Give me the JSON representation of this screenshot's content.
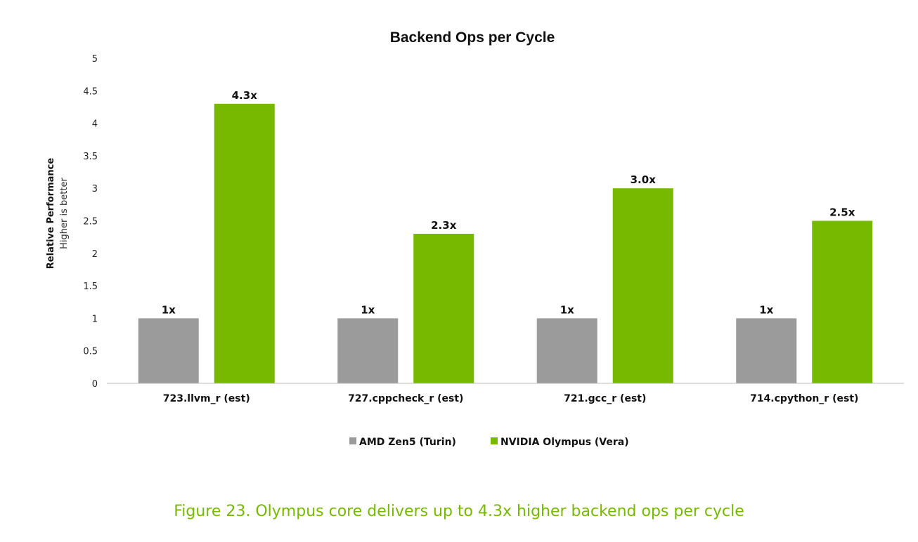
{
  "caption": "Figure 23. Olympus core delivers up to 4.3x higher backend ops per cycle",
  "colors": {
    "amd": "#9b9b9b",
    "nvidia": "#76b900",
    "caption": "#76b900"
  },
  "chart_data": {
    "type": "bar",
    "title": "Backend Ops per Cycle",
    "ylabel": "Relative Performance",
    "ylabel_sub": "Higher is better",
    "xlabel": "",
    "ylim": [
      0,
      5
    ],
    "yticks": [
      "0",
      "0.5",
      "1",
      "1.5",
      "2",
      "2.5",
      "3",
      "3.5",
      "4",
      "4.5",
      "5"
    ],
    "categories": [
      "723.llvm_r (est)",
      "727.cppcheck_r (est)",
      "721.gcc_r (est)",
      "714.cpython_r (est)"
    ],
    "series": [
      {
        "name": "AMD Zen5 (Turin)",
        "color": "#9b9b9b",
        "values": [
          1,
          1,
          1,
          1
        ],
        "labels": [
          "1x",
          "1x",
          "1x",
          "1x"
        ]
      },
      {
        "name": "NVIDIA Olympus (Vera)",
        "color": "#76b900",
        "values": [
          4.3,
          2.3,
          3.0,
          2.5
        ],
        "labels": [
          "4.3x",
          "2.3x",
          "3.0x",
          "2.5x"
        ]
      }
    ],
    "grid": false,
    "legend": "bottom"
  }
}
